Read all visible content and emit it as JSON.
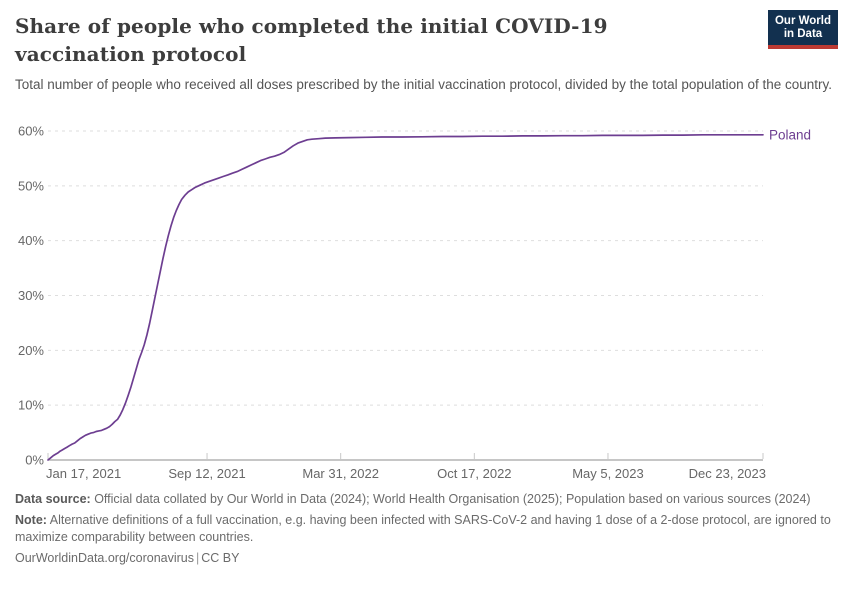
{
  "header": {
    "title": "Share of people who completed the initial COVID-19 vaccination protocol",
    "logo": {
      "line1": "Our World",
      "line2": "in Data",
      "bg_color": "#12304f",
      "bar_color": "#bc3a33"
    }
  },
  "subtitle": "Total number of people who received all doses prescribed by the initial vaccination protocol, divided by the total population of the country.",
  "chart_data": {
    "type": "line",
    "title": "Share of people who completed the initial COVID-19 vaccination protocol",
    "entity_label": "Poland",
    "line_color": "#6d3e91",
    "grid_color": "#dedede",
    "axis_color": "#a5a5a5",
    "tick_text_color": "#676767",
    "grid": "dashed horizontal only",
    "legend_position": "right of line end",
    "xlabel": "",
    "ylabel": "",
    "y_axis": {
      "ticks": [
        0,
        10,
        20,
        30,
        40,
        50,
        60
      ],
      "unit": "%",
      "ylim": [
        0,
        60
      ]
    },
    "x_axis": {
      "tick_labels": [
        "Jan 17, 2021",
        "Sep 12, 2021",
        "Mar 31, 2022",
        "Oct 17, 2022",
        "May 5, 2023",
        "Dec 23, 2023"
      ],
      "tick_days": [
        0,
        238,
        438,
        638,
        838,
        1070
      ],
      "domain_days": [
        0,
        1070
      ]
    },
    "series": [
      {
        "name": "Poland",
        "points_day_pct": [
          [
            0,
            0
          ],
          [
            4,
            0.4
          ],
          [
            8,
            0.8
          ],
          [
            12,
            1.1
          ],
          [
            15,
            1.3
          ],
          [
            18,
            1.6
          ],
          [
            21,
            1.8
          ],
          [
            25,
            2.1
          ],
          [
            28,
            2.3
          ],
          [
            32,
            2.6
          ],
          [
            36,
            2.9
          ],
          [
            40,
            3.1
          ],
          [
            44,
            3.5
          ],
          [
            48,
            3.9
          ],
          [
            52,
            4.2
          ],
          [
            56,
            4.5
          ],
          [
            60,
            4.7
          ],
          [
            64,
            4.9
          ],
          [
            68,
            5.0
          ],
          [
            72,
            5.2
          ],
          [
            76,
            5.3
          ],
          [
            80,
            5.4
          ],
          [
            84,
            5.6
          ],
          [
            88,
            5.8
          ],
          [
            92,
            6.1
          ],
          [
            96,
            6.5
          ],
          [
            100,
            7.0
          ],
          [
            104,
            7.4
          ],
          [
            108,
            8.2
          ],
          [
            112,
            9.2
          ],
          [
            116,
            10.4
          ],
          [
            120,
            11.8
          ],
          [
            124,
            13.3
          ],
          [
            128,
            14.9
          ],
          [
            132,
            16.6
          ],
          [
            136,
            18.3
          ],
          [
            140,
            19.6
          ],
          [
            144,
            21.0
          ],
          [
            148,
            22.8
          ],
          [
            152,
            24.9
          ],
          [
            156,
            27.2
          ],
          [
            160,
            29.6
          ],
          [
            164,
            32.0
          ],
          [
            168,
            34.4
          ],
          [
            172,
            36.7
          ],
          [
            176,
            38.9
          ],
          [
            180,
            40.9
          ],
          [
            184,
            42.7
          ],
          [
            188,
            44.2
          ],
          [
            192,
            45.5
          ],
          [
            196,
            46.6
          ],
          [
            200,
            47.5
          ],
          [
            205,
            48.3
          ],
          [
            210,
            48.9
          ],
          [
            215,
            49.3
          ],
          [
            220,
            49.7
          ],
          [
            227,
            50.1
          ],
          [
            234,
            50.5
          ],
          [
            241,
            50.8
          ],
          [
            248,
            51.1
          ],
          [
            255,
            51.4
          ],
          [
            262,
            51.7
          ],
          [
            269,
            52.0
          ],
          [
            276,
            52.3
          ],
          [
            283,
            52.6
          ],
          [
            290,
            53.0
          ],
          [
            297,
            53.4
          ],
          [
            304,
            53.8
          ],
          [
            311,
            54.2
          ],
          [
            318,
            54.6
          ],
          [
            325,
            54.9
          ],
          [
            332,
            55.2
          ],
          [
            339,
            55.4
          ],
          [
            346,
            55.7
          ],
          [
            353,
            56.1
          ],
          [
            360,
            56.7
          ],
          [
            367,
            57.3
          ],
          [
            374,
            57.8
          ],
          [
            381,
            58.1
          ],
          [
            388,
            58.4
          ],
          [
            395,
            58.5
          ],
          [
            405,
            58.6
          ],
          [
            415,
            58.7
          ],
          [
            430,
            58.75
          ],
          [
            450,
            58.8
          ],
          [
            475,
            58.85
          ],
          [
            500,
            58.9
          ],
          [
            530,
            58.9
          ],
          [
            560,
            58.95
          ],
          [
            590,
            59.0
          ],
          [
            620,
            59.0
          ],
          [
            650,
            59.05
          ],
          [
            680,
            59.05
          ],
          [
            710,
            59.1
          ],
          [
            740,
            59.1
          ],
          [
            770,
            59.15
          ],
          [
            800,
            59.15
          ],
          [
            830,
            59.2
          ],
          [
            860,
            59.2
          ],
          [
            890,
            59.2
          ],
          [
            920,
            59.25
          ],
          [
            950,
            59.25
          ],
          [
            980,
            59.3
          ],
          [
            1010,
            59.3
          ],
          [
            1040,
            59.3
          ],
          [
            1070,
            59.3
          ]
        ]
      }
    ]
  },
  "footer": {
    "data_source_label": "Data source:",
    "data_source_text": " Official data collated by Our World in Data (2024); World Health Organisation (2025); Population based on various sources (2024)",
    "note_label": "Note:",
    "note_text": " Alternative definitions of a full vaccination, e.g. having been infected with SARS-CoV-2 and having 1 dose of a 2-dose protocol, are ignored to maximize comparability between countries.",
    "link": "OurWorldinData.org/coronavirus",
    "separator": "|",
    "license": "CC BY"
  }
}
